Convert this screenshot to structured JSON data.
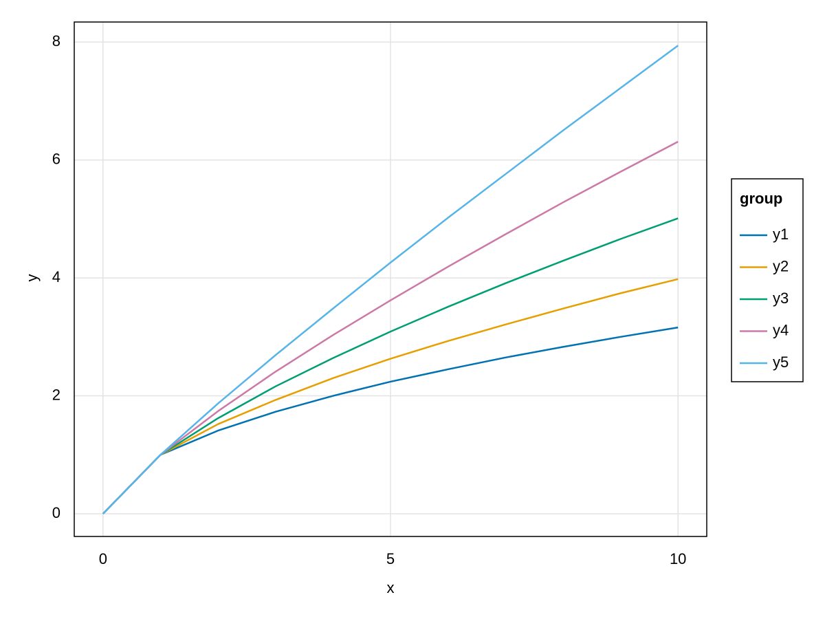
{
  "chart_data": {
    "type": "line",
    "x_label": "x",
    "y_label": "y",
    "x": [
      0,
      1,
      2,
      3,
      4,
      5,
      6,
      7,
      8,
      9,
      10
    ],
    "series": [
      {
        "name": "y1",
        "color": "#0072b2",
        "values": [
          0,
          1,
          1.41,
          1.73,
          2,
          2.24,
          2.45,
          2.65,
          2.83,
          3,
          3.16
        ]
      },
      {
        "name": "y2",
        "color": "#e69f00",
        "values": [
          0,
          1,
          1.52,
          1.93,
          2.3,
          2.63,
          2.93,
          3.21,
          3.48,
          3.74,
          3.98
        ]
      },
      {
        "name": "y3",
        "color": "#009e73",
        "values": [
          0,
          1,
          1.62,
          2.16,
          2.64,
          3.09,
          3.51,
          3.91,
          4.29,
          4.66,
          5.01
        ]
      },
      {
        "name": "y4",
        "color": "#cc79a7",
        "values": [
          0,
          1,
          1.74,
          2.41,
          3.03,
          3.62,
          4.19,
          4.74,
          5.28,
          5.8,
          6.31
        ]
      },
      {
        "name": "y5",
        "color": "#56b4e9",
        "values": [
          0,
          1,
          1.87,
          2.69,
          3.48,
          4.26,
          5.02,
          5.76,
          6.5,
          7.22,
          7.94
        ]
      }
    ],
    "xlim": [
      -0.5,
      10.5
    ],
    "xticks": [
      0,
      5,
      10
    ],
    "ylim": [
      -0.385,
      8.34
    ],
    "yticks": [
      0,
      2,
      4,
      6,
      8
    ],
    "grid": true,
    "legend_title": "group",
    "legend_position": "right"
  }
}
